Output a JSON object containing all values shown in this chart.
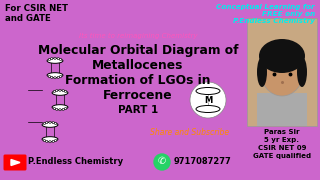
{
  "background_color": "#CC66CC",
  "top_left_text": "For CSIR NET\nand GATE",
  "top_right_text": "Conceptual Learning for\nFREE only on\nP.Endless Chemistry",
  "subtitle_text": "Its time to reimagining Chemistry",
  "main_title_line1": "Molecular Orbital Diagram of",
  "main_title_line2": "Metallocenes",
  "main_title_line3": "Formation of LGOs in",
  "main_title_line4": "Ferrocene",
  "part_text": "PART 1",
  "share_text": "Share and Subscribe",
  "channel_name": "P.Endless Chemistry",
  "phone_number": "9717087277",
  "paras_info": "Paras Sir\n5 yr Exp.\nCSIR NET 09\nGATE qualified",
  "top_left_color": "#000000",
  "top_right_color": "#00EEEE",
  "subtitle_color": "#FF55BB",
  "main_title_color": "#000000",
  "part_color": "#000000",
  "share_color": "#FF8C00",
  "channel_color": "#000000",
  "phone_color": "#000000",
  "paras_color": "#000000",
  "youtube_red": "#FF0000",
  "whatsapp_green": "#25D366",
  "photo_bg": "#C8A882",
  "hair_color": "#111111",
  "skin_color": "#C8956A"
}
